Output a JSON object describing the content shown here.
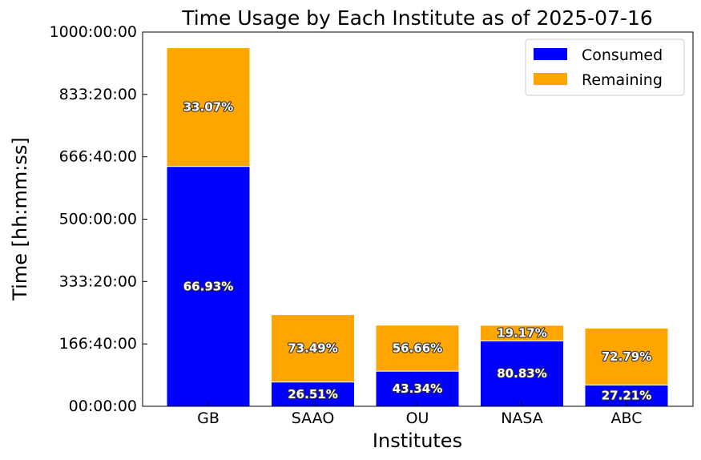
{
  "chart_data": {
    "type": "bar",
    "stacked": true,
    "title": "Time Usage by Each Institute as of 2025-07-16",
    "xlabel": "Institutes",
    "ylabel": "Time [hh:mm:ss]",
    "categories": [
      "GB",
      "SAAO",
      "OU",
      "NASA",
      "ABC"
    ],
    "ylim_hours": [
      0,
      1000
    ],
    "yticks": [
      {
        "hours": 0,
        "label": "00:00:00"
      },
      {
        "hours": 166.6667,
        "label": "166:40:00"
      },
      {
        "hours": 333.3333,
        "label": "333:20:00"
      },
      {
        "hours": 500,
        "label": "500:00:00"
      },
      {
        "hours": 666.6667,
        "label": "666:40:00"
      },
      {
        "hours": 833.3333,
        "label": "833:20:00"
      },
      {
        "hours": 1000,
        "label": "1000:00:00"
      }
    ],
    "series": [
      {
        "name": "Consumed",
        "color": "#0000ff",
        "values_hours": [
          641,
          65,
          94,
          175,
          57
        ],
        "percent_labels": [
          "66.93%",
          "26.51%",
          "43.34%",
          "80.83%",
          "27.21%"
        ]
      },
      {
        "name": "Remaining",
        "color": "#ffa500",
        "values_hours": [
          317,
          180,
          123,
          41.5,
          152
        ],
        "percent_labels": [
          "33.07%",
          "73.49%",
          "56.66%",
          "19.17%",
          "72.79%"
        ]
      }
    ],
    "legend_position": "top-right",
    "grid": false
  }
}
